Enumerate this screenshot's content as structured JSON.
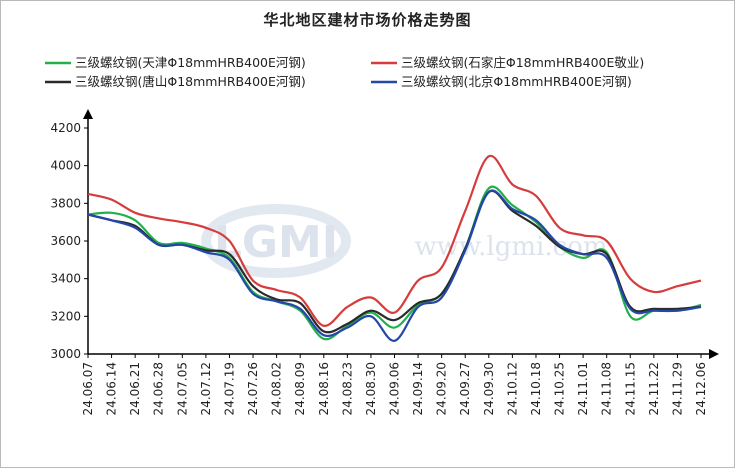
{
  "chart_data": {
    "type": "line",
    "title": "华北地区建材市场价格走势图",
    "xlabel": "",
    "ylabel": "",
    "ylim": [
      3000,
      4200
    ],
    "yticks": [
      3000,
      3200,
      3400,
      3600,
      3800,
      4000,
      4200
    ],
    "grid": false,
    "legend_position": "top",
    "watermark": "www.lgmi.com",
    "watermark_logo": "LGMI",
    "x_tick_labels": [
      "24.06.07",
      "24.06.14",
      "24.06.21",
      "24.06.28",
      "24.07.05",
      "24.07.12",
      "24.07.19",
      "24.07.26",
      "24.08.02",
      "24.08.09",
      "24.08.16",
      "24.08.23",
      "24.08.30",
      "24.09.06",
      "24.09.14",
      "24.09.20",
      "24.09.27",
      "24.09.30",
      "24.10.12",
      "24.10.18",
      "24.10.25",
      "24.11.01",
      "24.11.08",
      "24.11.15",
      "24.11.22",
      "24.11.29",
      "24.12.06"
    ],
    "series": [
      {
        "name": "三级螺纹钢(天津Φ18mmHRB400E河钢)",
        "color": "#22b04b",
        "values": [
          3740,
          3750,
          3710,
          3590,
          3590,
          3560,
          3510,
          3330,
          3280,
          3230,
          3080,
          3150,
          3220,
          3140,
          3260,
          3320,
          3560,
          3880,
          3790,
          3700,
          3570,
          3510,
          3540,
          3200,
          3230,
          3230,
          3260
        ]
      },
      {
        "name": "三级螺纹钢(石家庄Φ18mmHRB400E敬业)",
        "color": "#d63c3c",
        "values": [
          3850,
          3820,
          3750,
          3720,
          3700,
          3670,
          3600,
          3390,
          3340,
          3300,
          3150,
          3250,
          3300,
          3220,
          3390,
          3460,
          3760,
          4050,
          3900,
          3840,
          3670,
          3630,
          3600,
          3400,
          3330,
          3360,
          3390
        ]
      },
      {
        "name": "三级螺纹钢(唐山Φ18mmHRB400E河钢)",
        "color": "#2a2a2a",
        "values": [
          3740,
          3710,
          3680,
          3580,
          3580,
          3550,
          3530,
          3360,
          3290,
          3270,
          3120,
          3160,
          3230,
          3180,
          3270,
          3320,
          3560,
          3860,
          3760,
          3680,
          3570,
          3530,
          3530,
          3250,
          3240,
          3240,
          3250
        ]
      },
      {
        "name": "三级螺纹钢(北京Φ18mmHRB400E河钢)",
        "color": "#2447a8",
        "values": [
          3740,
          3710,
          3670,
          3580,
          3580,
          3540,
          3500,
          3320,
          3280,
          3240,
          3100,
          3140,
          3200,
          3070,
          3250,
          3300,
          3550,
          3860,
          3770,
          3710,
          3580,
          3530,
          3510,
          3240,
          3230,
          3230,
          3250
        ]
      }
    ]
  }
}
